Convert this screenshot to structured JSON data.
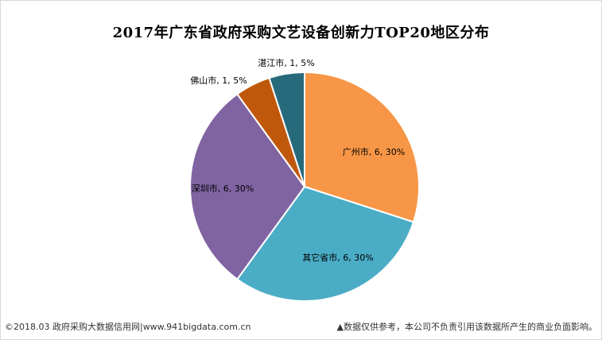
{
  "chart_data": {
    "type": "pie",
    "title": "2017年广东省政府采购文艺设备创新力TOP20地区分布",
    "categories": [
      "广州市",
      "其它省市",
      "深圳市",
      "佛山市",
      "湛江市"
    ],
    "values": [
      6,
      6,
      6,
      1,
      1
    ],
    "percents": [
      "30%",
      "30%",
      "30%",
      "5%",
      "5%"
    ],
    "colors": [
      "#F79646",
      "#4BACC6",
      "#8064A2",
      "#C0580C",
      "#276A7C"
    ],
    "data_labels": [
      "广州市, 6, 30%",
      "其它省市, 6, 30%",
      "深圳市, 6, 30%",
      "佛山市, 1, 5%",
      "湛江市, 1, 5%"
    ],
    "start_angle_deg": 0,
    "direction": "clockwise"
  },
  "footer": {
    "left": "©2018.03 政府采购大数据信用网|www.941bigdata.com.cn",
    "right": "▲数据仅供参考，本公司不负责引用该数据所产生的商业负面影响。"
  }
}
